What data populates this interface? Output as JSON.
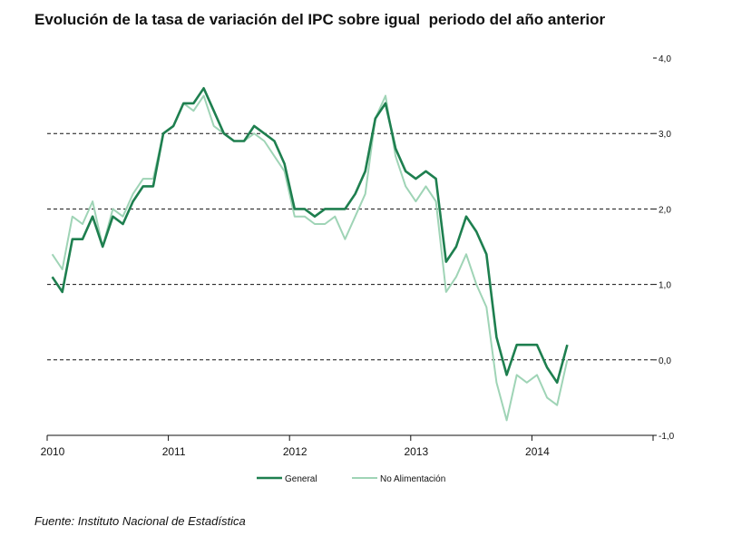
{
  "chart_data": {
    "type": "line",
    "title": "Evolución de la tasa de variación del IPC sobre igual  periodo del año anterior",
    "source": "Fuente: Instituto Nacional de Estadística",
    "x_tick_labels": [
      "2010",
      "2011",
      "2012",
      "2013",
      "2014"
    ],
    "y_tick_labels": [
      "4,0",
      "3,0",
      "2,0",
      "1,0",
      "0,0",
      "-1,0"
    ],
    "y_ticks": [
      4,
      3,
      2,
      1,
      0,
      -1
    ],
    "ylim": [
      -1,
      4
    ],
    "x_start_year": 2010,
    "x_end_year": 2015,
    "gridlines": [
      3,
      2,
      1,
      0
    ],
    "grid_style": "dashed",
    "legend_position": "bottom-center",
    "series": [
      {
        "name": "General",
        "color": "#1e7f4f",
        "values": [
          1.1,
          0.9,
          1.6,
          1.6,
          1.9,
          1.5,
          1.9,
          1.8,
          2.1,
          2.3,
          2.3,
          3.0,
          3.1,
          3.4,
          3.4,
          3.6,
          3.3,
          3.0,
          2.9,
          2.9,
          3.1,
          3.0,
          2.9,
          2.6,
          2.0,
          2.0,
          1.9,
          2.0,
          2.0,
          2.0,
          2.2,
          2.5,
          3.2,
          3.4,
          2.8,
          2.5,
          2.4,
          2.5,
          2.4,
          1.3,
          1.5,
          1.9,
          1.7,
          1.4,
          0.3,
          -0.2,
          0.2,
          0.2,
          0.2,
          -0.1,
          -0.3,
          0.2
        ]
      },
      {
        "name": "No Alimentación",
        "color": "#9fd4b6",
        "values": [
          1.4,
          1.2,
          1.9,
          1.8,
          2.1,
          1.5,
          2.0,
          1.9,
          2.2,
          2.4,
          2.4,
          3.0,
          3.1,
          3.4,
          3.3,
          3.5,
          3.1,
          3.0,
          2.9,
          2.9,
          3.0,
          2.9,
          2.7,
          2.5,
          1.9,
          1.9,
          1.8,
          1.8,
          1.9,
          1.6,
          1.9,
          2.2,
          3.2,
          3.5,
          2.7,
          2.3,
          2.1,
          2.3,
          2.1,
          0.9,
          1.1,
          1.4,
          1.0,
          0.7,
          -0.3,
          -0.8,
          -0.2,
          -0.3,
          -0.2,
          -0.5,
          -0.6,
          0.0
        ]
      }
    ]
  }
}
